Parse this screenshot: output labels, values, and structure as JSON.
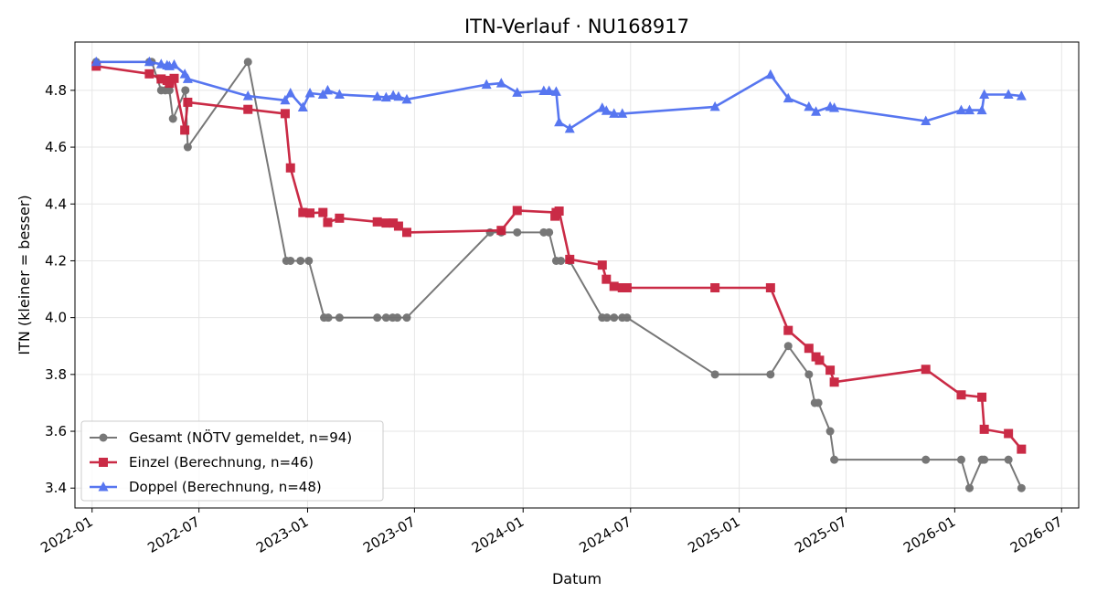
{
  "chart_data": {
    "type": "line",
    "title": "ITN-Verlauf · NU168917",
    "xlabel": "Datum",
    "ylabel": "ITN  (kleiner = besser)",
    "xlim": [
      "2021-12-03",
      "2026-07-30"
    ],
    "ylim": [
      3.33,
      4.97
    ],
    "x_ticks": [
      "2022-01",
      "2022-07",
      "2023-01",
      "2023-07",
      "2024-01",
      "2024-07",
      "2025-01",
      "2025-07",
      "2026-01",
      "2026-07"
    ],
    "y_ticks": [
      3.4,
      3.6,
      3.8,
      4.0,
      4.2,
      4.4,
      4.6,
      4.8
    ],
    "grid": true,
    "legend_position": "lower-left",
    "series": [
      {
        "name": "Gesamt (NÖTV gemeldet, n=94)",
        "color": "#444444",
        "marker": "circle",
        "points": [
          [
            "2022-01-08",
            4.9
          ],
          [
            "2022-04-08",
            4.9
          ],
          [
            "2022-04-12",
            4.9
          ],
          [
            "2022-04-28",
            4.8
          ],
          [
            "2022-05-05",
            4.8
          ],
          [
            "2022-05-12",
            4.8
          ],
          [
            "2022-05-18",
            4.7
          ],
          [
            "2022-06-08",
            4.8
          ],
          [
            "2022-06-12",
            4.6
          ],
          [
            "2022-09-22",
            4.9
          ],
          [
            "2022-11-26",
            4.2
          ],
          [
            "2022-12-03",
            4.2
          ],
          [
            "2022-12-20",
            4.2
          ],
          [
            "2023-01-03",
            4.2
          ],
          [
            "2023-01-29",
            4.0
          ],
          [
            "2023-02-05",
            4.0
          ],
          [
            "2023-02-24",
            4.0
          ],
          [
            "2023-04-29",
            4.0
          ],
          [
            "2023-05-14",
            4.0
          ],
          [
            "2023-05-25",
            4.0
          ],
          [
            "2023-06-02",
            4.0
          ],
          [
            "2023-06-18",
            4.0
          ],
          [
            "2023-11-06",
            4.3
          ],
          [
            "2023-11-25",
            4.3
          ],
          [
            "2023-12-22",
            4.3
          ],
          [
            "2024-02-05",
            4.3
          ],
          [
            "2024-02-14",
            4.3
          ],
          [
            "2024-02-26",
            4.2
          ],
          [
            "2024-03-05",
            4.2
          ],
          [
            "2024-03-20",
            4.2
          ],
          [
            "2024-05-14",
            4.0
          ],
          [
            "2024-05-22",
            4.0
          ],
          [
            "2024-06-03",
            4.0
          ],
          [
            "2024-06-17",
            4.0
          ],
          [
            "2024-06-25",
            4.0
          ],
          [
            "2024-11-21",
            3.8
          ],
          [
            "2025-02-23",
            3.8
          ],
          [
            "2025-03-25",
            3.9
          ],
          [
            "2025-04-29",
            3.8
          ],
          [
            "2025-05-09",
            3.7
          ],
          [
            "2025-05-15",
            3.7
          ],
          [
            "2025-06-04",
            3.6
          ],
          [
            "2025-06-11",
            3.5
          ],
          [
            "2025-11-13",
            3.5
          ],
          [
            "2026-01-12",
            3.5
          ],
          [
            "2026-01-26",
            3.4
          ],
          [
            "2026-02-16",
            3.5
          ],
          [
            "2026-02-20",
            3.5
          ],
          [
            "2026-04-02",
            3.5
          ],
          [
            "2026-04-24",
            3.4
          ]
        ]
      },
      {
        "name": "Einzel (Berechnung, n=46)",
        "color": "#c8203d",
        "marker": "square",
        "points": [
          [
            "2022-01-08",
            4.885
          ],
          [
            "2022-04-08",
            4.858
          ],
          [
            "2022-04-28",
            4.84
          ],
          [
            "2022-05-08",
            4.835
          ],
          [
            "2022-05-12",
            4.825
          ],
          [
            "2022-05-20",
            4.842
          ],
          [
            "2022-06-07",
            4.66
          ],
          [
            "2022-06-12",
            4.758
          ],
          [
            "2022-09-22",
            4.733
          ],
          [
            "2022-11-24",
            4.718
          ],
          [
            "2022-12-03",
            4.527
          ],
          [
            "2022-12-24",
            4.37
          ],
          [
            "2023-01-05",
            4.368
          ],
          [
            "2023-01-27",
            4.37
          ],
          [
            "2023-02-04",
            4.335
          ],
          [
            "2023-02-24",
            4.35
          ],
          [
            "2023-04-29",
            4.337
          ],
          [
            "2023-05-14",
            4.333
          ],
          [
            "2023-05-26",
            4.333
          ],
          [
            "2023-06-04",
            4.322
          ],
          [
            "2023-06-18",
            4.3
          ],
          [
            "2023-11-25",
            4.307
          ],
          [
            "2023-12-22",
            4.377
          ],
          [
            "2024-02-26",
            4.37
          ],
          [
            "2024-02-24",
            4.357
          ],
          [
            "2024-03-02",
            4.375
          ],
          [
            "2024-03-20",
            4.205
          ],
          [
            "2024-05-14",
            4.185
          ],
          [
            "2024-05-21",
            4.135
          ],
          [
            "2024-06-03",
            4.11
          ],
          [
            "2024-06-17",
            4.105
          ],
          [
            "2024-06-25",
            4.105
          ],
          [
            "2024-11-21",
            4.105
          ],
          [
            "2025-02-23",
            4.105
          ],
          [
            "2025-03-25",
            3.955
          ],
          [
            "2025-04-29",
            3.892
          ],
          [
            "2025-05-11",
            3.862
          ],
          [
            "2025-05-17",
            3.85
          ],
          [
            "2025-06-04",
            3.815
          ],
          [
            "2025-06-11",
            3.773
          ],
          [
            "2025-11-13",
            3.818
          ],
          [
            "2026-01-12",
            3.728
          ],
          [
            "2026-02-16",
            3.72
          ],
          [
            "2026-02-20",
            3.607
          ],
          [
            "2026-04-02",
            3.592
          ],
          [
            "2026-04-24",
            3.537
          ]
        ]
      },
      {
        "name": "Doppel (Berechnung, n=48)",
        "color": "#4f6ff0",
        "marker": "triangle",
        "points": [
          [
            "2022-01-08",
            4.9
          ],
          [
            "2022-04-08",
            4.9
          ],
          [
            "2022-04-28",
            4.892
          ],
          [
            "2022-05-08",
            4.888
          ],
          [
            "2022-05-12",
            4.885
          ],
          [
            "2022-05-20",
            4.89
          ],
          [
            "2022-06-07",
            4.857
          ],
          [
            "2022-06-12",
            4.84
          ],
          [
            "2022-09-22",
            4.78
          ],
          [
            "2022-11-24",
            4.765
          ],
          [
            "2022-12-03",
            4.79
          ],
          [
            "2022-12-24",
            4.74
          ],
          [
            "2023-01-05",
            4.79
          ],
          [
            "2023-01-27",
            4.785
          ],
          [
            "2023-02-04",
            4.8
          ],
          [
            "2023-02-24",
            4.785
          ],
          [
            "2023-04-29",
            4.778
          ],
          [
            "2023-05-14",
            4.775
          ],
          [
            "2023-05-26",
            4.782
          ],
          [
            "2023-06-04",
            4.778
          ],
          [
            "2023-06-18",
            4.768
          ],
          [
            "2023-10-31",
            4.82
          ],
          [
            "2023-11-25",
            4.825
          ],
          [
            "2023-12-22",
            4.792
          ],
          [
            "2024-02-05",
            4.798
          ],
          [
            "2024-02-14",
            4.798
          ],
          [
            "2024-02-26",
            4.795
          ],
          [
            "2024-03-02",
            4.688
          ],
          [
            "2024-03-20",
            4.665
          ],
          [
            "2024-05-14",
            4.738
          ],
          [
            "2024-05-21",
            4.728
          ],
          [
            "2024-06-03",
            4.718
          ],
          [
            "2024-06-17",
            4.718
          ],
          [
            "2024-11-21",
            4.742
          ],
          [
            "2025-02-23",
            4.855
          ],
          [
            "2025-03-25",
            4.772
          ],
          [
            "2025-04-29",
            4.742
          ],
          [
            "2025-05-11",
            4.725
          ],
          [
            "2025-06-04",
            4.742
          ],
          [
            "2025-06-11",
            4.738
          ],
          [
            "2025-11-13",
            4.692
          ],
          [
            "2026-01-12",
            4.73
          ],
          [
            "2026-01-26",
            4.73
          ],
          [
            "2026-02-16",
            4.73
          ],
          [
            "2026-02-20",
            4.785
          ],
          [
            "2026-04-02",
            4.785
          ],
          [
            "2026-04-24",
            4.78
          ]
        ]
      }
    ]
  }
}
